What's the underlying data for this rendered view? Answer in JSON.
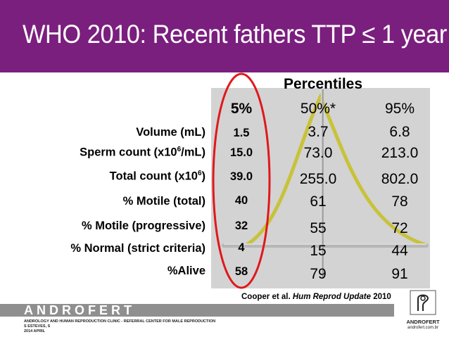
{
  "slide": {
    "title": "WHO 2010: Recent fathers TTP ≤ 1 year",
    "percentiles_heading": "Percentiles",
    "columns": [
      "5%",
      "50%*",
      "95%"
    ],
    "rows": [
      {
        "label_pre": "Volume (mL)",
        "label_sup": "",
        "label_post": "",
        "p5": "1.5",
        "p50": "3.7",
        "p95": "6.8"
      },
      {
        "label_pre": "Sperm count (x10",
        "label_sup": "6",
        "label_post": "/mL)",
        "p5": "15.0",
        "p50": "73.0",
        "p95": "213.0"
      },
      {
        "label_pre": "Total count (x10",
        "label_sup": "6",
        "label_post": ")",
        "p5": "39.0",
        "p50": "255.0",
        "p95": "802.0"
      },
      {
        "label_pre": "% Motile (total)",
        "label_sup": "",
        "label_post": "",
        "p5": "40",
        "p50": "61",
        "p95": "78"
      },
      {
        "label_pre": "% Motile (progressive)",
        "label_sup": "",
        "label_post": "",
        "p5": "32",
        "p50": "55",
        "p95": "72"
      },
      {
        "label_pre": "% Normal (strict criteria)",
        "label_sup": "",
        "label_post": "",
        "p5": "4",
        "p50": "15",
        "p95": "44"
      },
      {
        "label_pre": "%Alive",
        "label_sup": "",
        "label_post": "",
        "p5": "58",
        "p50": "79",
        "p95": "91"
      }
    ],
    "citation_authors": "Cooper et al. ",
    "citation_journal": "Hum Reprod Update",
    "citation_year": " 2010"
  },
  "footer": {
    "brand": "ANDROFERT",
    "info_line1": "ANDROLOGY AND HUMAN REPRODUCTION CLINIC - REFERRAL CENTER FOR MALE REPRODUCTION",
    "info_line2": "S ESTEVES, S",
    "info_line3": "2014 APRIL",
    "logo_name": "ANDROFERT",
    "logo_url": "androfert.com.br"
  },
  "colors": {
    "title_bar": "#7a1f7e",
    "panel": "#d3d3d3",
    "curve": "#c8c23a",
    "highlight": "#e0181b",
    "footer_band": "#8f8f8f"
  }
}
